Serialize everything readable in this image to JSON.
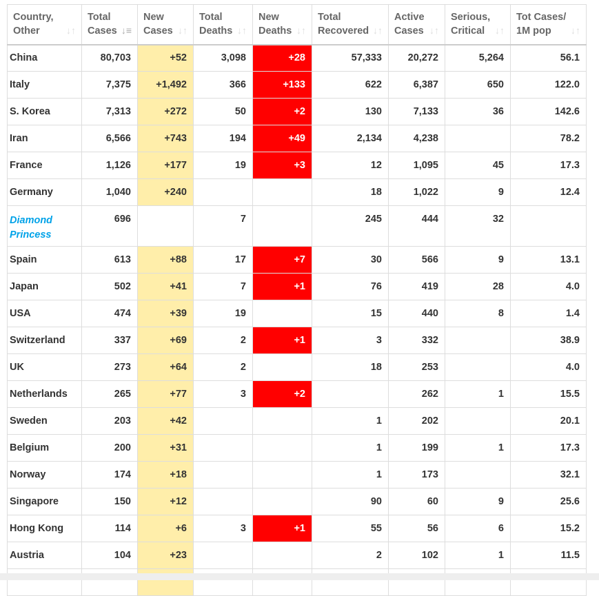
{
  "headers": [
    {
      "l1": "Country,",
      "l2": "Other"
    },
    {
      "l1": "Total",
      "l2": "Cases"
    },
    {
      "l1": "New",
      "l2": "Cases"
    },
    {
      "l1": "Total",
      "l2": "Deaths"
    },
    {
      "l1": "New",
      "l2": "Deaths"
    },
    {
      "l1": "Total",
      "l2": "Recovered"
    },
    {
      "l1": "Active",
      "l2": "Cases"
    },
    {
      "l1": "Serious,",
      "l2": "Critical"
    },
    {
      "l1": "Tot Cases/",
      "l2": "1M pop"
    }
  ],
  "sorted_column": "Total Cases",
  "sort_direction": "descending",
  "colors": {
    "new_cases_bg": "#ffeeaa",
    "new_deaths_bg": "#ff0000",
    "ship_link": "#00a2e8"
  },
  "rows": [
    [
      "China",
      "80,703",
      "+52",
      "3,098",
      "+28",
      "57,333",
      "20,272",
      "5,264",
      "56.1"
    ],
    [
      "Italy",
      "7,375",
      "+1,492",
      "366",
      "+133",
      "622",
      "6,387",
      "650",
      "122.0"
    ],
    [
      "S. Korea",
      "7,313",
      "+272",
      "50",
      "+2",
      "130",
      "7,133",
      "36",
      "142.6"
    ],
    [
      "Iran",
      "6,566",
      "+743",
      "194",
      "+49",
      "2,134",
      "4,238",
      "",
      "78.2"
    ],
    [
      "France",
      "1,126",
      "+177",
      "19",
      "+3",
      "12",
      "1,095",
      "45",
      "17.3"
    ],
    [
      "Germany",
      "1,040",
      "+240",
      "",
      "",
      "18",
      "1,022",
      "9",
      "12.4"
    ],
    [
      "Diamond Princess",
      "696",
      "",
      "7",
      "",
      "245",
      "444",
      "32",
      ""
    ],
    [
      "Spain",
      "613",
      "+88",
      "17",
      "+7",
      "30",
      "566",
      "9",
      "13.1"
    ],
    [
      "Japan",
      "502",
      "+41",
      "7",
      "+1",
      "76",
      "419",
      "28",
      "4.0"
    ],
    [
      "USA",
      "474",
      "+39",
      "19",
      "",
      "15",
      "440",
      "8",
      "1.4"
    ],
    [
      "Switzerland",
      "337",
      "+69",
      "2",
      "+1",
      "3",
      "332",
      "",
      "38.9"
    ],
    [
      "UK",
      "273",
      "+64",
      "2",
      "",
      "18",
      "253",
      "",
      "4.0"
    ],
    [
      "Netherlands",
      "265",
      "+77",
      "3",
      "+2",
      "",
      "262",
      "1",
      "15.5"
    ],
    [
      "Sweden",
      "203",
      "+42",
      "",
      "",
      "1",
      "202",
      "",
      "20.1"
    ],
    [
      "Belgium",
      "200",
      "+31",
      "",
      "",
      "1",
      "199",
      "1",
      "17.3"
    ],
    [
      "Norway",
      "174",
      "+18",
      "",
      "",
      "1",
      "173",
      "",
      "32.1"
    ],
    [
      "Singapore",
      "150",
      "+12",
      "",
      "",
      "90",
      "60",
      "9",
      "25.6"
    ],
    [
      "Hong Kong",
      "114",
      "+6",
      "3",
      "+1",
      "55",
      "56",
      "6",
      "15.2"
    ],
    [
      "Austria",
      "104",
      "+23",
      "",
      "",
      "2",
      "102",
      "1",
      "11.5"
    ],
    [
      "",
      "",
      "",
      "",
      "",
      "",
      "",
      "",
      ""
    ]
  ]
}
